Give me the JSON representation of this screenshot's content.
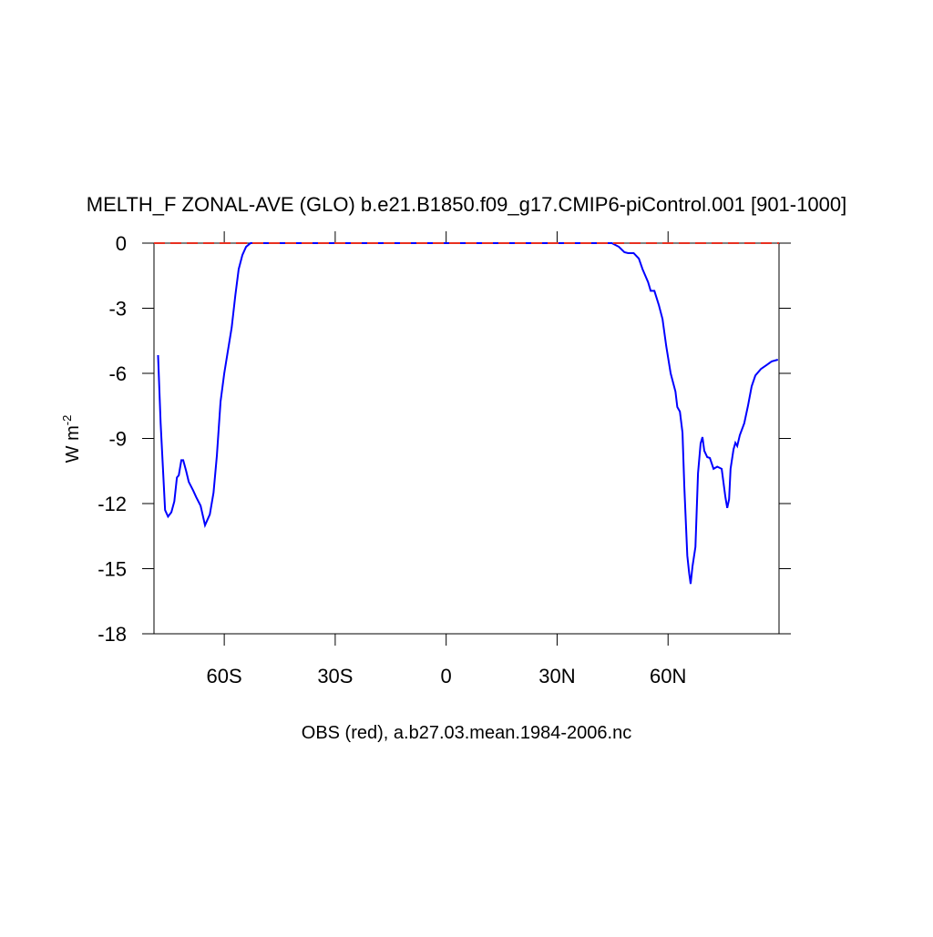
{
  "chart_data": {
    "type": "line",
    "title": "MELTH_F ZONAL-AVE (GLO) b.e21.B1850.f09_g17.CMIP6-piControl.001 [901-1000]",
    "ylabel": "W m",
    "ylabel_sup": "-2",
    "footnote": "OBS (red), a.b27.03.mean.1984-2006.nc",
    "xlim": [
      -79,
      90
    ],
    "ylim": [
      -18,
      0
    ],
    "xticks": [
      {
        "value": -60,
        "label": "60S"
      },
      {
        "value": -30,
        "label": "30S"
      },
      0,
      {
        "value": 30,
        "label": "30N"
      },
      {
        "value": 60,
        "label": "60N"
      }
    ],
    "yticks": [
      0,
      -3,
      -6,
      -9,
      -12,
      -15,
      -18
    ],
    "series": [
      {
        "color": "#0000ff",
        "dash": false,
        "x": [
          -77.9,
          -77.2,
          -76.0,
          -75.2,
          -74.3,
          -73.5,
          -72.8,
          -72.3,
          -71.6,
          -71.1,
          -70.3,
          -69.6,
          -68.4,
          -67.6,
          -66.4,
          -65.2,
          -63.9,
          -62.9,
          -62.0,
          -61.0,
          -60.0,
          -59.0,
          -58.0,
          -57.0,
          -56.1,
          -55.1,
          -54.1,
          -52.9,
          44.8,
          46.7,
          48.2,
          49.2,
          50.7,
          52.1,
          53.1,
          54.6,
          55.3,
          56.3,
          57.5,
          58.5,
          59.5,
          60.7,
          62.0,
          62.5,
          63.2,
          63.9,
          64.4,
          65.2,
          65.7,
          66.1,
          66.6,
          67.4,
          68.1,
          68.8,
          69.3,
          69.8,
          70.6,
          71.3,
          72.3,
          73.3,
          74.5,
          75.5,
          76.0,
          76.5,
          76.9,
          77.7,
          78.2,
          78.7,
          79.4,
          80.6,
          81.6,
          82.6,
          83.6,
          85.1,
          86.8,
          88.0,
          89.7
        ],
        "values": [
          -5.16,
          -8.3,
          -12.3,
          -12.6,
          -12.4,
          -11.9,
          -10.8,
          -10.7,
          -10.0,
          -10.0,
          -10.5,
          -11.0,
          -11.4,
          -11.7,
          -12.1,
          -13.0,
          -12.5,
          -11.5,
          -9.8,
          -7.3,
          -6.0,
          -4.95,
          -3.9,
          -2.4,
          -1.2,
          -0.55,
          -0.17,
          0,
          0,
          -0.17,
          -0.42,
          -0.46,
          -0.46,
          -0.71,
          -1.2,
          -1.8,
          -2.2,
          -2.2,
          -2.85,
          -3.5,
          -4.74,
          -6.0,
          -6.84,
          -7.55,
          -7.76,
          -8.73,
          -11.25,
          -14.4,
          -15.2,
          -15.7,
          -14.9,
          -14.0,
          -10.6,
          -9.23,
          -8.94,
          -9.57,
          -9.86,
          -9.9,
          -10.4,
          -10.3,
          -10.4,
          -11.7,
          -12.2,
          -11.8,
          -10.4,
          -9.5,
          -9.2,
          -9.35,
          -8.85,
          -8.3,
          -7.5,
          -6.6,
          -6.1,
          -5.8,
          -5.6,
          -5.45,
          -5.37
        ]
      },
      {
        "color": "#e83020",
        "dash": true,
        "x": [
          -79,
          90
        ],
        "values": [
          0,
          0
        ]
      }
    ]
  }
}
